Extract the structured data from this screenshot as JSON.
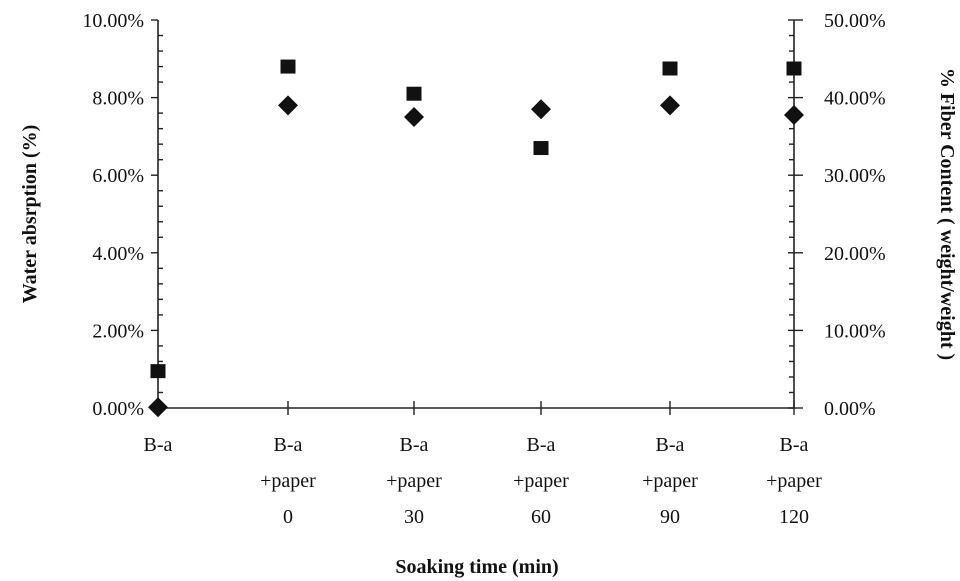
{
  "chart_data": {
    "type": "scatter",
    "title": "",
    "xlabel": "Soaking time (min)",
    "ylabel": "Water absrption (%)",
    "y2label": "% Fiber Content ( weight/weight )",
    "categories": [
      [
        "B-a"
      ],
      [
        "B-a",
        "+paper",
        "0"
      ],
      [
        "B-a",
        "+paper",
        "30"
      ],
      [
        "B-a",
        "+paper",
        "60"
      ],
      [
        "B-a",
        "+paper",
        "90"
      ],
      [
        "B-a",
        "+paper",
        "120"
      ]
    ],
    "ylim": [
      0,
      10
    ],
    "y_ticks": [
      "0.00%",
      "2.00%",
      "4.00%",
      "6.00%",
      "8.00%",
      "10.00%"
    ],
    "y2lim": [
      0,
      50
    ],
    "y2_ticks": [
      "0.00%",
      "10.00%",
      "20.00%",
      "30.00%",
      "40.00%",
      "50.00%"
    ],
    "series": [
      {
        "marker": "square",
        "color": "#111111",
        "axis": "left",
        "values": [
          0.95,
          8.8,
          8.1,
          6.7,
          8.75,
          8.75
        ]
      },
      {
        "marker": "diamond",
        "color": "#111111",
        "axis": "left",
        "values": [
          0.02,
          7.8,
          7.5,
          7.7,
          7.8,
          7.55
        ]
      }
    ],
    "grid": false,
    "legend": "none"
  }
}
